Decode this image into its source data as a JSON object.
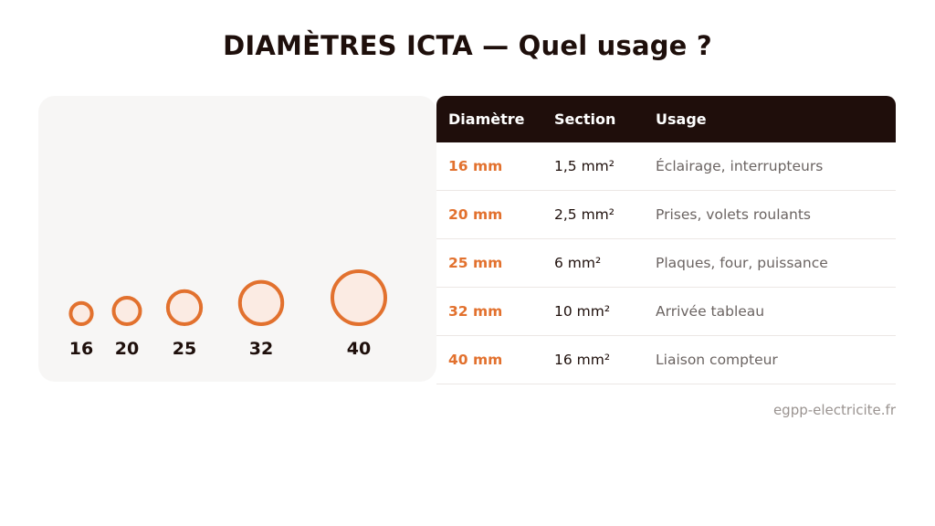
{
  "title": "DIAMÈTRES ICTA — Quel usage ?",
  "colors": {
    "accent": "#e2712e",
    "circle_fill": "#fbebe3",
    "dark": "#1f0e0b"
  },
  "circles": [
    {
      "label": "16",
      "diameter_mm": 16
    },
    {
      "label": "20",
      "diameter_mm": 20
    },
    {
      "label": "25",
      "diameter_mm": 25
    },
    {
      "label": "32",
      "diameter_mm": 32
    },
    {
      "label": "40",
      "diameter_mm": 40
    }
  ],
  "table": {
    "headers": [
      "Diamètre",
      "Section",
      "Usage"
    ],
    "rows": [
      {
        "diametre": "16 mm",
        "section": "1,5 mm²",
        "usage": "Éclairage, interrupteurs"
      },
      {
        "diametre": "20 mm",
        "section": "2,5 mm²",
        "usage": "Prises, volets roulants"
      },
      {
        "diametre": "25 mm",
        "section": "6 mm²",
        "usage": "Plaques, four, puissance"
      },
      {
        "diametre": "32 mm",
        "section": "10 mm²",
        "usage": "Arrivée tableau"
      },
      {
        "diametre": "40 mm",
        "section": "16 mm²",
        "usage": "Liaison compteur"
      }
    ]
  },
  "footer": "egpp-electricite.fr"
}
